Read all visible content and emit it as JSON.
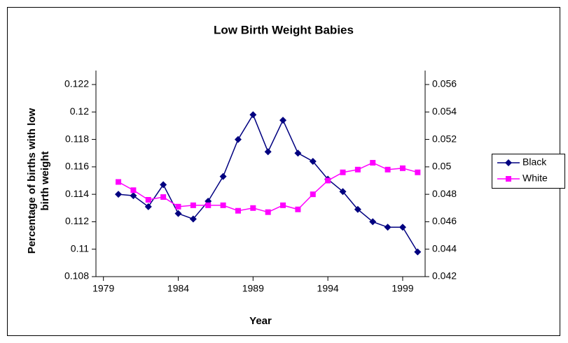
{
  "chart_data": {
    "type": "line",
    "title": "Low Birth Weight Babies",
    "x_label": "Year",
    "y_label": "Percentage of births with low birth weight",
    "x": [
      1980,
      1981,
      1982,
      1983,
      1984,
      1985,
      1986,
      1987,
      1988,
      1989,
      1990,
      1991,
      1992,
      1993,
      1994,
      1995,
      1996,
      1997,
      1998,
      1999,
      2000
    ],
    "series": [
      {
        "name": "Black",
        "color": "#000080",
        "marker": "diamond",
        "values": [
          0.114,
          0.1139,
          0.1131,
          0.1147,
          0.1126,
          0.1122,
          0.1135,
          0.1153,
          0.118,
          0.1198,
          0.1171,
          0.1194,
          0.117,
          0.1164,
          0.1151,
          0.1142,
          0.1129,
          0.112,
          0.1116,
          0.1116,
          0.1098
        ]
      },
      {
        "name": "White",
        "color": "#ff00ff",
        "marker": "square",
        "axis": "y2",
        "values": [
          0.0489,
          0.0483,
          0.0476,
          0.0478,
          0.0471,
          0.0472,
          0.0472,
          0.0472,
          0.0468,
          0.047,
          0.0467,
          0.0472,
          0.0469,
          0.048,
          0.049,
          0.0496,
          0.0498,
          0.0503,
          0.0498,
          0.0499,
          0.0496
        ]
      }
    ],
    "xlim": [
      1978.5,
      2000.5
    ],
    "xticks": [
      1979,
      1984,
      1989,
      1994,
      1999
    ],
    "ylim": [
      0.108,
      0.122
    ],
    "yticks": [
      0.108,
      0.11,
      0.112,
      0.114,
      0.116,
      0.118,
      0.12,
      0.122
    ],
    "y2lim": [
      0.042,
      0.056
    ],
    "y2ticks": [
      0.042,
      0.044,
      0.046,
      0.048,
      0.05,
      0.052,
      0.054,
      0.056
    ],
    "legend": "right"
  }
}
